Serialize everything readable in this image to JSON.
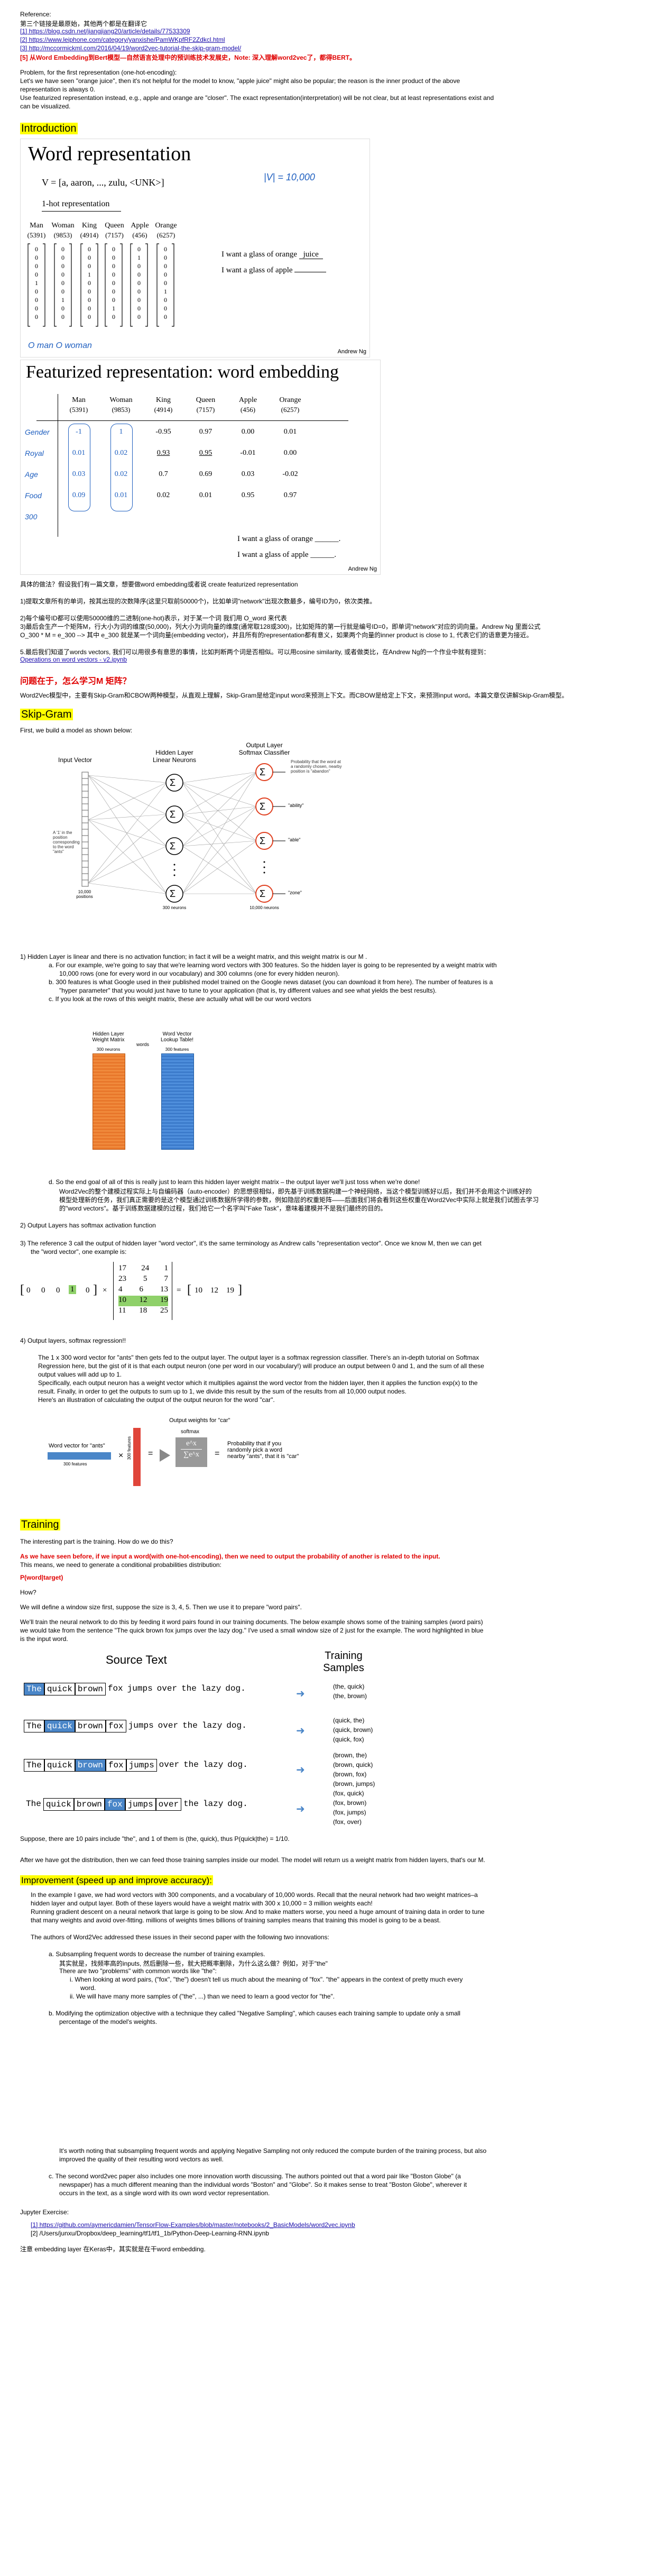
{
  "refs": {
    "title": "Reference:",
    "intro": "第三个链接是最原始，其他两个都是在翻译它",
    "links": [
      "[1] https://blog.csdn.net/jiangjiang20/article/details/77533309",
      "[2] https://www.leiphone.com/category/yanxishe/PamWKpfRF2Zdkcl.html",
      "[3] http://mccormickml.com/2016/04/19/word2vec-tutorial-the-skip-gram-model/"
    ],
    "warning": "[5] 从Word Embedding到Bert模型—自然语言处理中的预训练技术发展史，Note: 深入理解word2vec了，都得BERT。"
  },
  "problem": {
    "p1": "Problem, for the first representation (one-hot-encoding):",
    "p2": "Let's we have seen \"orange juice\", then it's not helpful for the model to know, \"apple juice\" might also be popular; the reason is the inner product of the above",
    "p3": "representation is always 0.",
    "p4": "Use featurized representation instead, e.g., apple and orange are \"closer\". The exact representation(interpretation) will be not clear, but at least representations exist and",
    "p5": "can be visualized."
  },
  "intro": {
    "heading": "Introduction",
    "slide1": {
      "title": "Word representation",
      "vocab": "V = [a, aaron, ..., zulu, <UNK>]",
      "vsize": "|V| = 10,000",
      "onehot": "1-hot representation",
      "words": [
        "Man",
        "Woman",
        "King",
        "Queen",
        "Apple",
        "Orange"
      ],
      "ids": [
        "(5391)",
        "(9853)",
        "(4914)",
        "(7157)",
        "(456)",
        "(6257)"
      ],
      "sentence1a": "I want a glass of orange",
      "sentence1b": "juice",
      "sentence2a": "I want a glass of apple",
      "sentence2b": "",
      "annot": "O man  O woman",
      "author": "Andrew Ng"
    },
    "slide2": {
      "title": "Featurized representation: word embedding",
      "words": [
        "Man",
        "Woman",
        "King",
        "Queen",
        "Apple",
        "Orange"
      ],
      "ids": [
        "(5391)",
        "(9853)",
        "(4914)",
        "(7157)",
        "(456)",
        "(6257)"
      ],
      "features": [
        "Gender",
        "Royal",
        "Age",
        "Food"
      ],
      "rows": [
        [
          "-1",
          "1",
          "-0.95",
          "0.97",
          "0.00",
          "0.01"
        ],
        [
          "0.01",
          "0.02",
          "0.93",
          "0.95",
          "-0.01",
          "0.00"
        ],
        [
          "0.03",
          "0.02",
          "0.7",
          "0.69",
          "0.03",
          "-0.02"
        ],
        [
          "0.09",
          "0.01",
          "0.02",
          "0.01",
          "0.95",
          "0.97"
        ]
      ],
      "dims": "300",
      "sentence1": "I want a glass of orange ______.",
      "sentence2": "I want a glass of apple ______.",
      "author": "Andrew Ng"
    },
    "notes": [
      "具体的做法？假设我们有一篇文章，想要做word embedding或者说 create featurized representation",
      "1)提取文章所有的单词，按其出现的次数降序(这里只取前50000个)，比如单词\"network\"出现次数最多，编号ID为0，依次类推。",
      "2)每个编号ID都可以使用50000维的二进制(one-hot)表示，对于某一个词 我们用 O_word 来代表",
      "3)最后会生产一个矩阵M，行大小为词的维度(50,000)，列大小为词向量的维度(通常取128或300)，比如矩阵的第一行就是编号ID=0，即单词\"network\"对应的词向量。Andrew Ng 里面公式",
      "O_300 * M = e_300 --> 其中 e_300 就是某一个词向量(embedding vector)，并且所有的representation都有意义，如果两个向量的inner product is close to 1, 代表它们的语意更为接近。",
      "5.最后我们知道了words vectors, 我们可以用很多有意思的事情，比如判断两个词是否相似。可以用cosine similarity, 或者做类比，在Andrew Ng的一个作业中就有提到："
    ],
    "notes_link": "Operations on word vectors - v2.ipynb"
  },
  "question": {
    "q": "问题在于，怎么学习M 矩阵？",
    "answer": "Word2Vec模型中，主要有Skip-Gram和CBOW两种模型，从直观上理解，Skip-Gram是给定input word来预测上下文。而CBOW是给定上下文，来预测input word。本篇文章仅讲解Skip-Gram模型。"
  },
  "skipgram": {
    "heading": "Skip-Gram",
    "lead": "First, we build a model as shown below:",
    "diagram": {
      "input_title": "Input Vector",
      "hidden_title1": "Hidden Layer",
      "hidden_title2": "Linear Neurons",
      "output_title1": "Output Layer",
      "output_title2": "Softmax Classifier",
      "input_note": "A '1' in the position corresponding to the word \"ants\"",
      "input_size": "10,000 positions",
      "hidden_size": "300 neurons",
      "output_size": "10,000 neurons",
      "prob_note": "Probability that the word at a randomly chosen, nearby position is \"abandon\"",
      "out_words": [
        "\"abandon\"",
        "\"ability\"",
        "\"able\"",
        "\"zone\""
      ],
      "sigma": "Σ"
    },
    "items": [
      "1)    Hidden Layer is linear and there is no activation function; in fact it will be a weight matrix, and this weight matrix is our M .",
      "a.    For our example, we're going to say that we're learning word vectors with 300 features. So the hidden layer is going to be represented by a weight matrix with",
      "10,000 rows (one for every word in our vocabulary) and 300 columns (one for every hidden neuron).",
      "b.    300 features is what Google used in their published model trained on the Google news dataset (you can download it from here). The number of features is a",
      "\"hyper parameter\" that you would just have to tune to your application (that is, try different values and see what yields the best results).",
      "c.    If you look at the rows of this weight matrix, these are actually what will be our word vectors"
    ],
    "matrix_labels": {
      "left1": "Hidden Layer",
      "left2": "Weight Matrix",
      "left_top": "300 neurons",
      "left_side": "10,000 words",
      "mid": "words",
      "right1": "Word Vector",
      "right2": "Lookup Table!",
      "right_top": "300 features"
    },
    "item_d1": "d.    So the end goal of all of this is really just to learn this hidden layer weight matrix – the output layer we'll just toss when we're done!",
    "item_d2": "Word2Vec的整个建模过程实际上与自编码器（auto-encoder）的思想很相似，即先基于训练数据构建一个神经网络，当这个模型训练好以后，我们并不会用这个训练好的",
    "item_d3": "模型处理新的任务，我们真正需要的是这个模型通过训练数据所学得的参数，例如隐层的权重矩阵——后面我们将会看到这些权重在Word2Vec中实际上就是我们试图去学习",
    "item_d4": "的\"word vectors\"。基于训练数据建模的过程，我们给它一个名字叫\"Fake Task\"，意味着建模并不是我们最终的目的。",
    "item2": "2)    Output Layers has softmax activation function",
    "item3a": "3)    The reference 3 call the output of hidden layer \"word vector\", it's the same terminology as Andrew calls \"representation vector\". Once we know M, then we can get",
    "item3b": "the \"word vector\", one example is:",
    "onehot_vec": [
      "0",
      "0",
      "0",
      "1",
      "0"
    ],
    "matrix": [
      [
        "17",
        "24",
        "1"
      ],
      [
        "23",
        "5",
        "7"
      ],
      [
        "4",
        "6",
        "13"
      ],
      [
        "10",
        "12",
        "19"
      ],
      [
        "11",
        "18",
        "25"
      ]
    ],
    "result": [
      "10",
      "12",
      "19"
    ],
    "item4": "4)    Output layers, softmax regression!!",
    "item4_text": [
      "The 1 x 300 word vector for \"ants\" then gets fed to the output layer. The output layer is a softmax regression classifier. There's an in-depth tutorial on Softmax",
      "Regression here, but the gist of it is that each output neuron (one per word in our vocabulary!) will produce an output between 0 and 1, and the sum of all these",
      "output values will add up to 1.",
      "Specifically, each output neuron has a weight vector which it multiplies against the word vector from the hidden layer, then it applies the function exp(x) to the",
      "result. Finally, in order to get the outputs to sum up to 1, we divide this result by the sum of the results from all 10,000 output nodes.",
      "Here's an illustration of calculating the output of the output neuron for the word \"car\"."
    ],
    "softmax_fig": {
      "weights_label": "Output weights for \"car\"",
      "wv_label": "Word vector for \"ants\"",
      "wv_size": "300 features",
      "side": "300 features",
      "softmax": "softmax",
      "formula_top": "e^x",
      "formula_bot": "∑e^x",
      "prob": "Probability that if you randomly pick a word nearby \"ants\", that it is \"car\""
    }
  },
  "training": {
    "heading": "Training",
    "p1": "The interesting part is the training. How do we do this?",
    "p2": "As we have seen before, if we input a word(with one-hot-encoding), then we need to output the probability of another is related to the input.",
    "p3": "This means, we need to generate a conditional probabilities distribution:",
    "p4": "P(word|target)",
    "p5": "How?",
    "p6": "We will define a window size first, suppose the size is 3, 4, 5. Then we use it to prepare \"word pairs\".",
    "p7": "We'll train the neural network to do this by feeding it word pairs found in our training documents. The below example shows some of the training samples (word pairs)",
    "p8": "we would take from the sentence \"The quick brown fox jumps over the lazy dog.\" I've used a small window size of 2 just for the example. The word highlighted in blue",
    "p9": "is the input word.",
    "source_title": "Source Text",
    "samples_title1": "Training",
    "samples_title2": "Samples",
    "sentences": [
      {
        "words": [
          "The",
          "quick",
          "brown",
          "fox",
          "jumps",
          "over",
          "the",
          "lazy",
          "dog."
        ],
        "hl": 0,
        "boxed": [
          0,
          1,
          2
        ],
        "samples": [
          "(the, quick)",
          "(the, brown)"
        ]
      },
      {
        "words": [
          "The",
          "quick",
          "brown",
          "fox",
          "jumps",
          "over",
          "the",
          "lazy",
          "dog."
        ],
        "hl": 1,
        "boxed": [
          0,
          1,
          2,
          3
        ],
        "samples": [
          "(quick, the)",
          "(quick, brown)",
          "(quick, fox)"
        ]
      },
      {
        "words": [
          "The",
          "quick",
          "brown",
          "fox",
          "jumps",
          "over",
          "the",
          "lazy",
          "dog."
        ],
        "hl": 2,
        "boxed": [
          0,
          1,
          2,
          3,
          4
        ],
        "samples": [
          "(brown, the)",
          "(brown, quick)",
          "(brown, fox)",
          "(brown, jumps)"
        ]
      },
      {
        "words": [
          "The",
          "quick",
          "brown",
          "fox",
          "jumps",
          "over",
          "the",
          "lazy",
          "dog."
        ],
        "hl": 3,
        "boxed": [
          1,
          2,
          3,
          4,
          5
        ],
        "samples": [
          "(fox, quick)",
          "(fox, brown)",
          "(fox, jumps)",
          "(fox, over)"
        ]
      }
    ],
    "p10": "Suppose, there are 10 pairs include \"the\", and 1 of them is (the, quick), thus P(quick|the) = 1/10.",
    "p11": "After we have got the distribution, then we can feed those training samples inside our model. The model will return us a weight matrix from hidden layers, that's our M."
  },
  "improve": {
    "heading": "Improvement (speed up and improve accuracy):",
    "p1": "In the example I gave, we had word vectors with 300 components, and a vocabulary of 10,000 words. Recall that the neural network had two weight matrices–a",
    "p2": "hidden layer and output layer. Both of these layers would have a weight matrix with 300 x 10,000 = 3 million weights each!",
    "p3": "Running gradient descent on a neural network that large is going to be slow. And to make matters worse, you need a huge amount of training data in order to tune",
    "p4": "that many weights and avoid over-fitting. millions of weights times billions of training samples means that training this model is going to be a beast.",
    "p5": "The authors of Word2Vec addressed these issues in their second paper with the following two innovations:",
    "a1": "a.    Subsampling frequent words to decrease the number of training examples.",
    "a2": "其实就是，找频率高的inputs, 然后删除一些，就大把概率删除，为什么这么做？例如，对于\"the\"",
    "a3": "There are two \"problems\" with common words like \"the\":",
    "a4": "i.    When looking at word pairs, (\"fox\", \"the\") doesn't tell us much about the meaning of \"fox\". \"the\" appears in the context of pretty much every",
    "a5": "word.",
    "a6": "ii.    We will have many more samples of (\"the\", ...) than we need to learn a good vector for \"the\".",
    "b1": "b.    Modifying the optimization objective with a technique they called \"Negative Sampling\", which causes each training sample to update only a small",
    "b2": "percentage of the model's weights.",
    "p6": "It's worth noting that subsampling frequent words and applying Negative Sampling not only reduced the compute burden of the training process, but also",
    "p7": "improved the quality of their resulting word vectors as well.",
    "c1": "c.    The second word2vec paper also includes one more innovation worth discussing. The authors pointed out that a word pair like \"Boston Globe\" (a",
    "c2": "newspaper) has a much different meaning than the individual words \"Boston\" and \"Globe\". So it makes sense to treat \"Boston Globe\", wherever it",
    "c3": "occurs in the text, as a single word with its own word vector representation."
  },
  "jupyter": {
    "title": "Jupyter Exercise:",
    "items": [
      "[1] https://github.com/aymericdamien/TensorFlow-Examples/blob/master/notebooks/2_BasicModels/word2vec.ipynb",
      "[2] /Users/junxu/Dropbox/deep_learning/tf1/tf1_1b/Python-Deep-Learning-RNN.ipynb"
    ],
    "footer": "注意 embedding layer 在Keras中，其实就是在干word embedding."
  }
}
